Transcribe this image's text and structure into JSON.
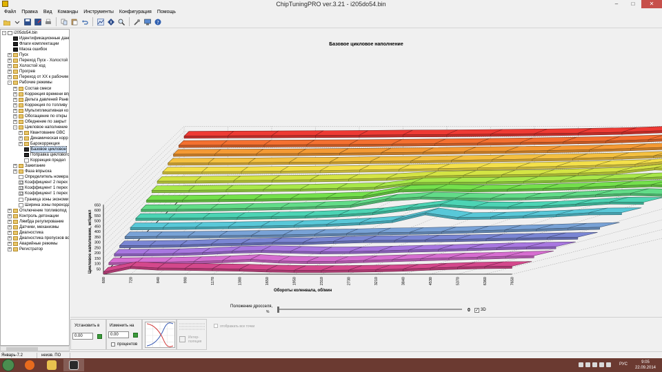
{
  "window": {
    "title": "ChipTuningPRO ver.3.21 - i205do54.bin",
    "buttons": {
      "minimize": "–",
      "maximize": "□",
      "close": "✕"
    }
  },
  "menu": [
    "Файл",
    "Правка",
    "Вид",
    "Команды",
    "Инструменты",
    "Конфигурация",
    "Помощь"
  ],
  "toolbar": {
    "icons": [
      "open-icon",
      "save-icon",
      "save-as-icon",
      "print-icon",
      "copy-icon",
      "paste-icon",
      "undo-icon",
      "map-icon",
      "info-icon",
      "search-icon",
      "tools-icon",
      "monitor-icon",
      "help-icon"
    ]
  },
  "tree": {
    "items": [
      {
        "label": "i205do54.bin",
        "level": 0,
        "expander": "-",
        "icon": "doc"
      },
      {
        "label": "Идентификационные данн",
        "level": 1,
        "expander": "",
        "icon": "map"
      },
      {
        "label": "Флаги комплектации",
        "level": 1,
        "expander": "",
        "icon": "flag"
      },
      {
        "label": "Маска ошибок",
        "level": 1,
        "expander": "",
        "icon": "flag"
      },
      {
        "label": "Пуск",
        "level": 1,
        "expander": "+",
        "icon": "folder"
      },
      {
        "label": "Переход Пуск - Холостой х",
        "level": 1,
        "expander": "+",
        "icon": "folder"
      },
      {
        "label": "Холостой ход",
        "level": 1,
        "expander": "+",
        "icon": "folder"
      },
      {
        "label": "Прогрев",
        "level": 1,
        "expander": "+",
        "icon": "folder"
      },
      {
        "label": "Переход от ХХ к рабочим р",
        "level": 1,
        "expander": "+",
        "icon": "folder"
      },
      {
        "label": "Рабочие режимы",
        "level": 1,
        "expander": "-",
        "icon": "folder"
      },
      {
        "label": "Состав смеси",
        "level": 2,
        "expander": "+",
        "icon": "folder"
      },
      {
        "label": "Коррекция времени впр",
        "level": 2,
        "expander": "+",
        "icon": "folder"
      },
      {
        "label": "Дельта давлений Ранв",
        "level": 2,
        "expander": "+",
        "icon": "folder"
      },
      {
        "label": "Коррекция по топливу",
        "level": 2,
        "expander": "+",
        "icon": "folder"
      },
      {
        "label": "Мультипликативная ко",
        "level": 2,
        "expander": "+",
        "icon": "folder"
      },
      {
        "label": "Обогащение по откры",
        "level": 2,
        "expander": "+",
        "icon": "folder"
      },
      {
        "label": "Обеднение по закрыт",
        "level": 2,
        "expander": "+",
        "icon": "folder"
      },
      {
        "label": "Цикловое наполнение",
        "level": 2,
        "expander": "-",
        "icon": "folder"
      },
      {
        "label": "Квантование GBC",
        "level": 3,
        "expander": "+",
        "icon": "folder"
      },
      {
        "label": "Динамическая корр",
        "level": 3,
        "expander": "+",
        "icon": "folder"
      },
      {
        "label": "Барокоррекция",
        "level": 3,
        "expander": "+",
        "icon": "folder"
      },
      {
        "label": "Базовое цикловое",
        "level": 3,
        "expander": "",
        "icon": "map",
        "selected": true
      },
      {
        "label": "Поправка циклового",
        "level": 3,
        "expander": "",
        "icon": "map"
      },
      {
        "label": "Коррекция предел",
        "level": 3,
        "expander": "",
        "icon": "curve"
      },
      {
        "label": "Зажигание",
        "level": 2,
        "expander": "+",
        "icon": "folder"
      },
      {
        "label": "Фаза впрыска",
        "level": 2,
        "expander": "+",
        "icon": "folder"
      },
      {
        "label": "Определитель номера",
        "level": 2,
        "expander": "",
        "icon": "curve"
      },
      {
        "label": "Коэффициент 2 перех",
        "level": 2,
        "expander": "",
        "icon": "12"
      },
      {
        "label": "Коэффициент 1 перех",
        "level": 2,
        "expander": "",
        "icon": "12"
      },
      {
        "label": "Коэффициент 1 перех",
        "level": 2,
        "expander": "",
        "icon": "12"
      },
      {
        "label": "Граница зоны экономи",
        "level": 2,
        "expander": "",
        "icon": "curve"
      },
      {
        "label": "Ширина зоны перехода",
        "level": 2,
        "expander": "",
        "icon": "curve"
      },
      {
        "label": "Отключение топливопод",
        "level": 1,
        "expander": "+",
        "icon": "folder"
      },
      {
        "label": "Контроль детонации",
        "level": 1,
        "expander": "+",
        "icon": "folder"
      },
      {
        "label": "Лямбда регулирование",
        "level": 1,
        "expander": "+",
        "icon": "folder"
      },
      {
        "label": "Датчики, механизмы",
        "level": 1,
        "expander": "+",
        "icon": "folder"
      },
      {
        "label": "Диагностика",
        "level": 1,
        "expander": "+",
        "icon": "folder"
      },
      {
        "label": "Диагностика пропусков во",
        "level": 1,
        "expander": "+",
        "icon": "folder"
      },
      {
        "label": "Аварийные режимы",
        "level": 1,
        "expander": "+",
        "icon": "folder"
      },
      {
        "label": "Регистратор",
        "level": 1,
        "expander": "+",
        "icon": "folder"
      }
    ]
  },
  "chart_data": {
    "type": "surface3d",
    "title": "Базовое цикловое наполнение",
    "xlabel": "Обороты коленвала, об/мин",
    "ylabel": "Цикловое наполнение, мг/цикл",
    "x_ticks": [
      "600",
      "720",
      "840",
      "990",
      "1170",
      "1380",
      "1650",
      "1950",
      "2310",
      "2730",
      "3210",
      "3840",
      "4530",
      "5370",
      "6360",
      "7650"
    ],
    "z_ticks": [
      "50",
      "100",
      "150",
      "200",
      "250",
      "300",
      "350",
      "400",
      "450",
      "500",
      "550",
      "600",
      "650"
    ],
    "zlim": [
      0,
      650
    ],
    "grid": true,
    "colors": [
      "#d4488c",
      "#d66ed0",
      "#a877e0",
      "#7a86d4",
      "#78a2d6",
      "#58c8d8",
      "#4cd4b4",
      "#62dc88",
      "#74e04c",
      "#a8e84a",
      "#d4e444",
      "#f4e04a",
      "#f4c040",
      "#f49a34",
      "#f47030",
      "#ee3a34"
    ],
    "series": [
      {
        "values": [
          20,
          72,
          58,
          56,
          52,
          48,
          40,
          36,
          36,
          38,
          42,
          48,
          58,
          66,
          72,
          75
        ]
      },
      {
        "values": [
          58,
          62,
          64,
          70,
          78,
          90,
          75,
          70,
          72,
          80,
          88,
          96,
          104,
          110,
          118,
          124
        ]
      },
      {
        "values": [
          90,
          92,
          95,
          104,
          118,
          124,
          118,
          112,
          114,
          120,
          128,
          134,
          142,
          150,
          156,
          160
        ]
      },
      {
        "values": [
          120,
          122,
          126,
          136,
          142,
          150,
          150,
          160,
          168,
          170,
          174,
          178,
          184,
          190,
          196,
          200
        ]
      },
      {
        "values": [
          155,
          158,
          160,
          164,
          168,
          172,
          178,
          184,
          192,
          196,
          202,
          210,
          218,
          226,
          236,
          244
        ]
      },
      {
        "values": [
          190,
          192,
          196,
          200,
          206,
          212,
          222,
          236,
          258,
          330,
          286,
          290,
          300,
          312,
          330,
          332
        ]
      },
      {
        "values": [
          228,
          230,
          234,
          238,
          244,
          250,
          262,
          282,
          322,
          360,
          338,
          336,
          344,
          362,
          382,
          380
        ]
      },
      {
        "values": [
          262,
          264,
          268,
          274,
          280,
          290,
          302,
          360,
          380,
          372,
          366,
          372,
          384,
          400,
          414,
          404
        ]
      },
      {
        "values": [
          300,
          302,
          306,
          310,
          316,
          324,
          336,
          396,
          404,
          398,
          402,
          410,
          420,
          434,
          446,
          436
        ]
      },
      {
        "values": [
          342,
          344,
          348,
          352,
          356,
          364,
          372,
          416,
          420,
          422,
          428,
          436,
          446,
          460,
          474,
          462
        ]
      },
      {
        "values": [
          380,
          382,
          386,
          390,
          394,
          400,
          408,
          428,
          436,
          440,
          446,
          456,
          468,
          506,
          494,
          478
        ]
      },
      {
        "values": [
          418,
          420,
          422,
          426,
          430,
          436,
          442,
          450,
          456,
          462,
          470,
          480,
          490,
          526,
          514,
          498
        ]
      },
      {
        "values": [
          452,
          454,
          456,
          460,
          462,
          468,
          472,
          478,
          484,
          490,
          496,
          506,
          520,
          548,
          530,
          512
        ]
      },
      {
        "values": [
          486,
          488,
          490,
          492,
          496,
          500,
          504,
          510,
          514,
          520,
          528,
          540,
          552,
          580,
          556,
          532
        ]
      },
      {
        "values": [
          520,
          522,
          524,
          526,
          528,
          532,
          536,
          540,
          546,
          552,
          560,
          574,
          590,
          610,
          580,
          556
        ]
      },
      {
        "values": [
          558,
          560,
          562,
          564,
          566,
          570,
          572,
          576,
          580,
          586,
          594,
          610,
          624,
          640,
          612,
          590
        ]
      }
    ]
  },
  "controls": {
    "throttle_label": "Положение дросселя,",
    "throttle_unit": "%",
    "throttle_value": "0",
    "label_3d": "3D",
    "set_label": "Установить в",
    "set_value": "0.00",
    "change_label": "Изменить на",
    "change_value": "0.00",
    "percent_label": "процентов",
    "interp_label_1": "Интер-",
    "interp_label_2": "поляция",
    "show_all_label": "отображать все точки"
  },
  "status": {
    "cell1": "Январь-7.2",
    "cell2": "неизв. ПО"
  },
  "taskbar": {
    "lang": "РУС",
    "time": "9:05",
    "date": "22.09.2014"
  }
}
